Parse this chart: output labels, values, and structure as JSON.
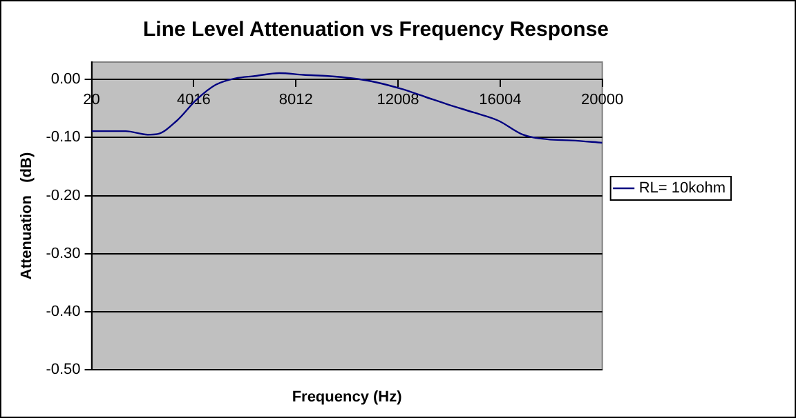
{
  "chart_data": {
    "type": "line",
    "title": "Line Level Attenuation vs Frequency Response",
    "xlabel": "Frequency (Hz)",
    "ylabel": "Attenuation   (dB)",
    "x": [
      20,
      1354,
      2212,
      2594,
      3356,
      4119,
      4881,
      5644,
      6406,
      7359,
      8313,
      9266,
      10219,
      11172,
      12125,
      13078,
      14031,
      14984,
      15938,
      16891,
      17844,
      18797,
      20000
    ],
    "series": [
      {
        "name": "RL= 10kohm",
        "color": "#000080",
        "values": [
          -0.089,
          -0.089,
          -0.095,
          -0.094,
          -0.071,
          -0.035,
          -0.009,
          0.002,
          0.006,
          0.011,
          0.008,
          0.006,
          0.002,
          -0.005,
          -0.016,
          -0.03,
          -0.044,
          -0.057,
          -0.071,
          -0.095,
          -0.103,
          -0.105,
          -0.109
        ]
      }
    ],
    "xlim": [
      20,
      20000
    ],
    "xticks": [
      20,
      4016,
      8012,
      12008,
      16004,
      20000
    ],
    "ylim": [
      -0.5,
      0.03
    ],
    "yticks": [
      {
        "value": -0.5,
        "label": "-0.50"
      },
      {
        "value": -0.4,
        "label": "-0.40"
      },
      {
        "value": -0.3,
        "label": "-0.30"
      },
      {
        "value": -0.2,
        "label": "-0.20"
      },
      {
        "value": -0.1,
        "label": "-0.10"
      },
      {
        "value": 0,
        "label": "0.00"
      }
    ],
    "grid": "y",
    "legend": "right",
    "marker": "none",
    "line_style": "solid"
  }
}
